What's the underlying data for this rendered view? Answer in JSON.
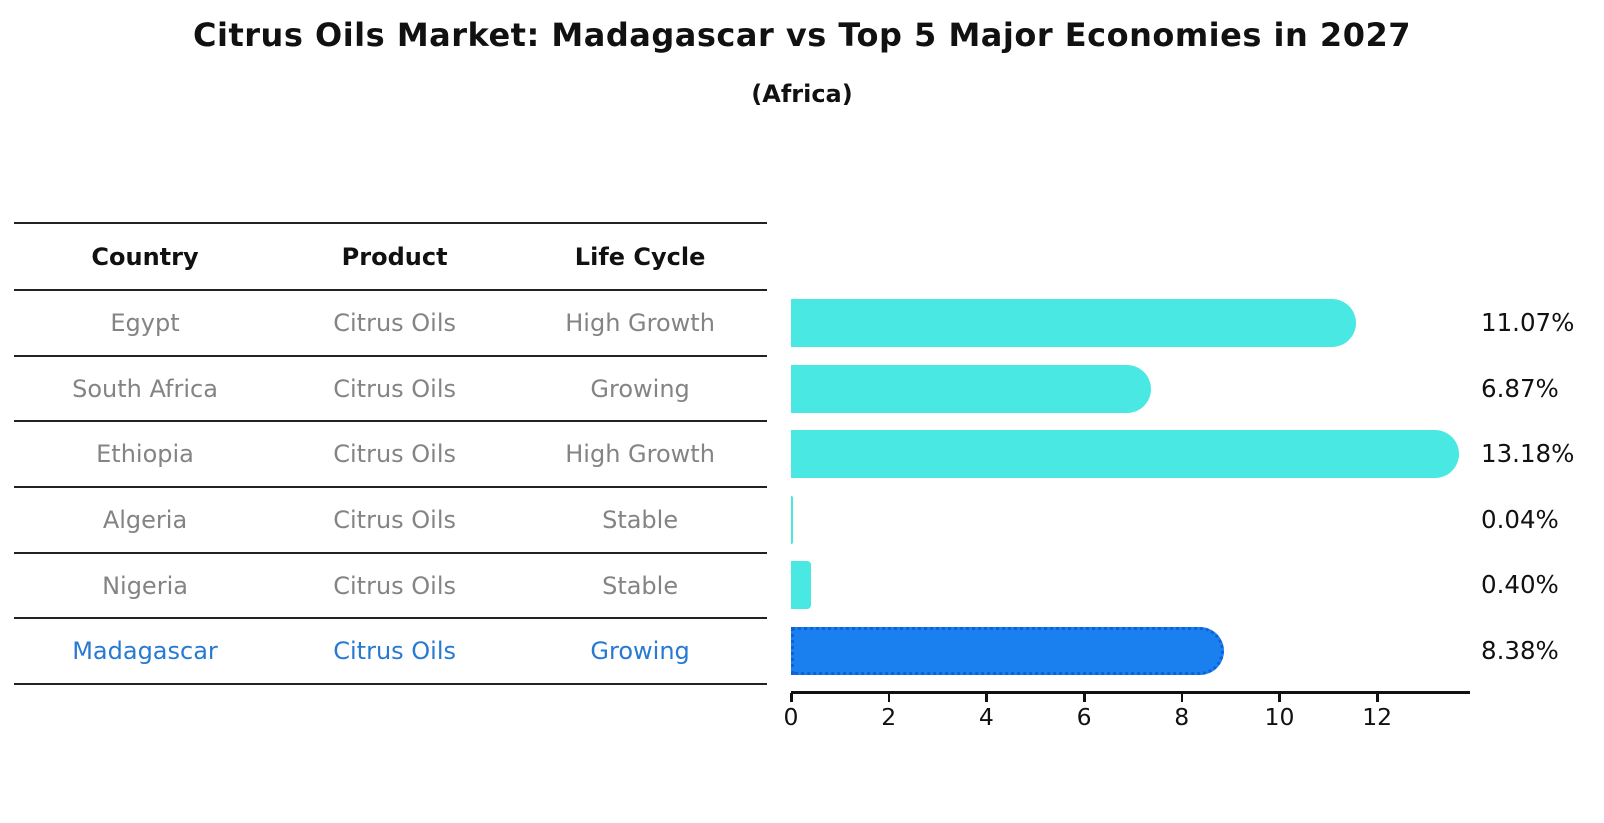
{
  "title": "Citrus Oils Market: Madagascar vs Top 5 Major Economies in 2027",
  "subtitle": "(Africa)",
  "colors": {
    "bar_default": "#4AE8E2",
    "bar_highlight": "#1A80F0",
    "highlight_border": "#0F62D6",
    "highlight_text": "#2879D2",
    "row_text": "#848484"
  },
  "table": {
    "headers": [
      "Country",
      "Product",
      "Life Cycle"
    ],
    "rows": [
      {
        "country": "Egypt",
        "product": "Citrus Oils",
        "life_cycle": "High Growth"
      },
      {
        "country": "South Africa",
        "product": "Citrus Oils",
        "life_cycle": "Growing"
      },
      {
        "country": "Ethiopia",
        "product": "Citrus Oils",
        "life_cycle": "High Growth"
      },
      {
        "country": "Algeria",
        "product": "Citrus Oils",
        "life_cycle": "Stable"
      },
      {
        "country": "Nigeria",
        "product": "Citrus Oils",
        "life_cycle": "Stable"
      },
      {
        "country": "Madagascar",
        "product": "Citrus Oils",
        "life_cycle": "Growing"
      }
    ]
  },
  "chart_data": {
    "type": "bar",
    "orientation": "horizontal",
    "title": "Citrus Oils Market: Madagascar vs Top 5 Major Economies in 2027 (Africa)",
    "categories": [
      "Egypt",
      "South Africa",
      "Ethiopia",
      "Algeria",
      "Nigeria",
      "Madagascar"
    ],
    "values": [
      11.07,
      6.87,
      13.18,
      0.04,
      0.4,
      8.38
    ],
    "value_labels": [
      "11.07%",
      "6.87%",
      "13.18%",
      "0.04%",
      "0.40%",
      "8.38%"
    ],
    "highlight_category": "Madagascar",
    "xlabel": "",
    "ylabel": "",
    "xlim": [
      0,
      13.9
    ],
    "x_ticks": [
      0,
      2,
      4,
      6,
      8,
      10,
      12
    ],
    "x_tick_labels": [
      "0",
      "2",
      "4",
      "6",
      "8",
      "10",
      "12"
    ],
    "grid": false,
    "legend": false
  }
}
